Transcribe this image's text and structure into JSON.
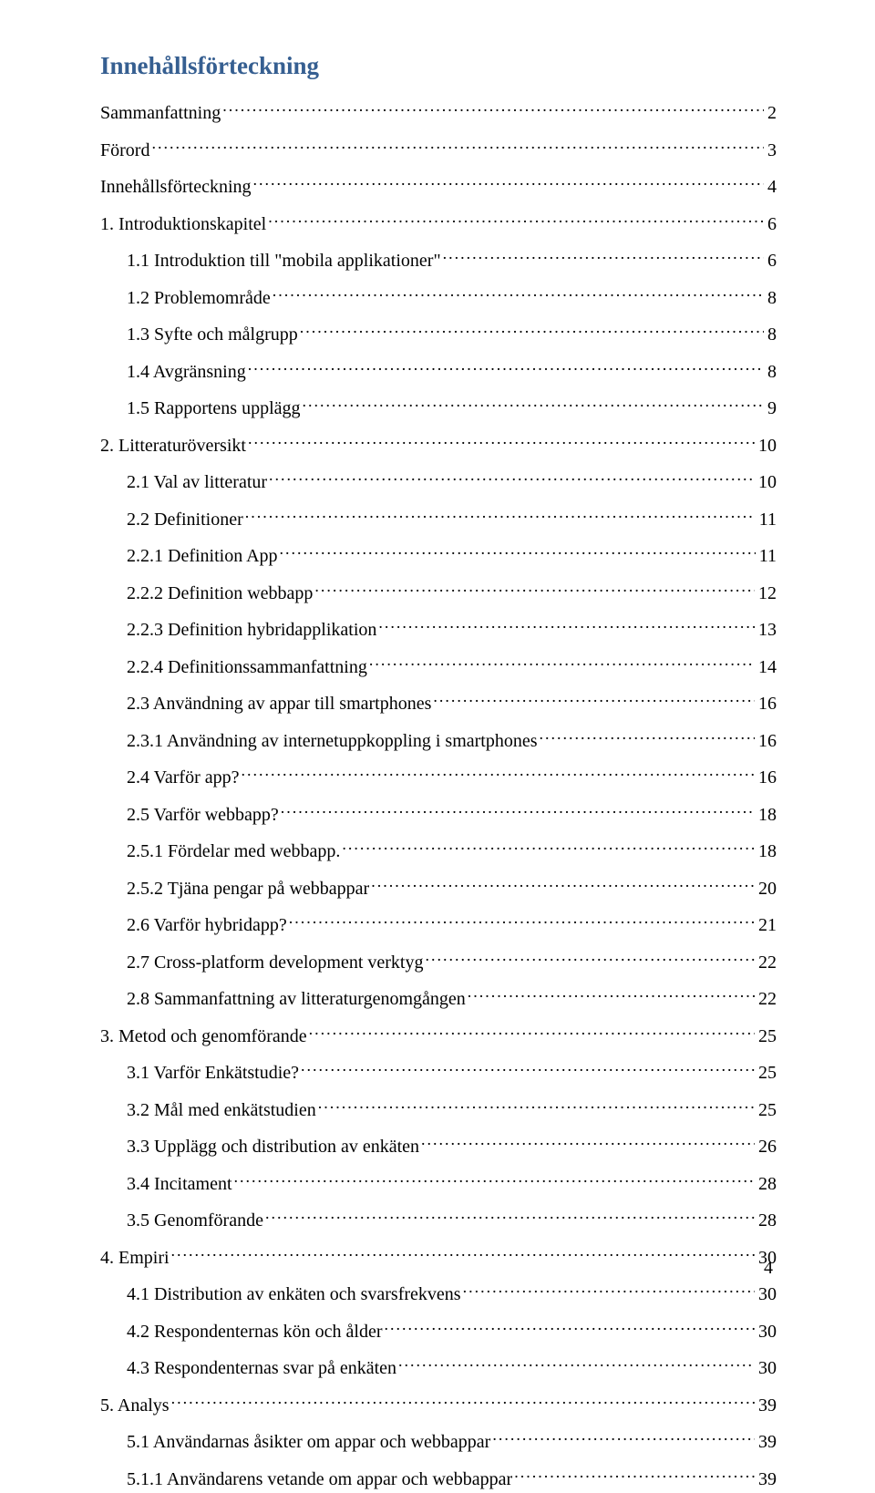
{
  "title": "Innehållsförteckning",
  "pageNumber": "4",
  "entries": [
    {
      "level": 1,
      "label": "Sammanfattning",
      "page": " 2"
    },
    {
      "level": 1,
      "label": "Förord",
      "page": " 3"
    },
    {
      "level": 1,
      "label": "Innehållsförteckning",
      "page": " 4"
    },
    {
      "level": 1,
      "label": "1. Introduktionskapitel",
      "page": " 6"
    },
    {
      "level": 2,
      "label": "1.1 Introduktion till \"mobila applikationer\"",
      "page": "6"
    },
    {
      "level": 2,
      "label": "1.2 Problemområde",
      "page": "8"
    },
    {
      "level": 2,
      "label": "1.3 Syfte och målgrupp",
      "page": "8"
    },
    {
      "level": 2,
      "label": "1.4 Avgränsning",
      "page": "8"
    },
    {
      "level": 2,
      "label": "1.5 Rapportens upplägg",
      "page": "9"
    },
    {
      "level": 1,
      "label": "2. Litteraturöversikt",
      "page": " 10"
    },
    {
      "level": 2,
      "label": "2.1 Val av litteratur",
      "page": "10"
    },
    {
      "level": 2,
      "label": "2.2 Definitioner",
      "page": "11"
    },
    {
      "level": 3,
      "label": "2.2.1 Definition App",
      "page": " 11"
    },
    {
      "level": 3,
      "label": "2.2.2 Definition webbapp",
      "page": " 12"
    },
    {
      "level": 3,
      "label": "2.2.3 Definition hybridapplikation",
      "page": " 13"
    },
    {
      "level": 3,
      "label": "2.2.4 Definitionssammanfattning",
      "page": " 14"
    },
    {
      "level": 2,
      "label": "2.3 Användning av appar till smartphones",
      "page": "16"
    },
    {
      "level": 3,
      "label": "2.3.1 Användning av internetuppkoppling i smartphones",
      "page": " 16"
    },
    {
      "level": 2,
      "label": "2.4 Varför app?",
      "page": "16"
    },
    {
      "level": 2,
      "label": "2.5 Varför webbapp?",
      "page": "18"
    },
    {
      "level": 3,
      "label": "2.5.1 Fördelar med webbapp.",
      "page": " 18"
    },
    {
      "level": 3,
      "label": "2.5.2 Tjäna pengar på webbappar",
      "page": " 20"
    },
    {
      "level": 2,
      "label": "2.6 Varför hybridapp?",
      "page": "21"
    },
    {
      "level": 2,
      "label": "2.7 Cross-platform development verktyg",
      "page": "22"
    },
    {
      "level": 2,
      "label": "2.8 Sammanfattning av litteraturgenomgången",
      "page": "22"
    },
    {
      "level": 1,
      "label": "3. Metod och genomförande",
      "page": " 25"
    },
    {
      "level": 2,
      "label": "3.1 Varför Enkätstudie?",
      "page": "25"
    },
    {
      "level": 2,
      "label": "3.2 Mål med enkätstudien",
      "page": "25"
    },
    {
      "level": 2,
      "label": "3.3 Upplägg och distribution av enkäten",
      "page": "26"
    },
    {
      "level": 2,
      "label": "3.4 Incitament",
      "page": "28"
    },
    {
      "level": 2,
      "label": "3.5 Genomförande",
      "page": "28"
    },
    {
      "level": 1,
      "label": "4. Empiri",
      "page": " 30"
    },
    {
      "level": 2,
      "label": "4.1 Distribution av enkäten och svarsfrekvens",
      "page": "30"
    },
    {
      "level": 2,
      "label": "4.2 Respondenternas kön och ålder",
      "page": "30"
    },
    {
      "level": 2,
      "label": "4.3 Respondenternas svar på enkäten",
      "page": "30"
    },
    {
      "level": 1,
      "label": "5. Analys",
      "page": " 39"
    },
    {
      "level": 2,
      "label": "5.1 Användarnas åsikter om appar och webbappar",
      "page": "39"
    },
    {
      "level": 3,
      "label": "5.1.1 Användarens vetande om appar och webbappar",
      "page": "39"
    }
  ]
}
